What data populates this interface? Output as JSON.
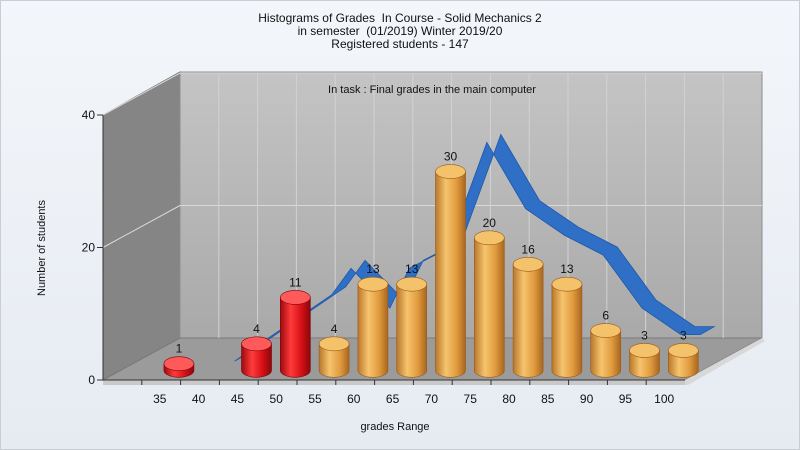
{
  "chart_data": {
    "type": "bar",
    "title_lines": [
      "Histograms of Grades  In Course - Solid Mechanics 2",
      "in semester  (01/2019) Winter 2019/20",
      "Registered students - 147"
    ],
    "annotation": "In task : Final grades in the main computer",
    "xlabel": "grades Range",
    "ylabel": "Number of students",
    "x_tick_labels": [
      "35",
      "40",
      "45",
      "50",
      "55",
      "60",
      "65",
      "70",
      "75",
      "80",
      "85",
      "90",
      "95",
      "100"
    ],
    "y_ticks": [
      0,
      20,
      40
    ],
    "ylim": [
      0,
      40
    ],
    "categories": [
      "35",
      "45",
      "50",
      "55",
      "60",
      "65",
      "70",
      "75",
      "80",
      "85",
      "90",
      "95",
      "100"
    ],
    "values": [
      1,
      4,
      11,
      4,
      13,
      13,
      30,
      20,
      16,
      13,
      6,
      3,
      3
    ],
    "bar_status": [
      "fail",
      "fail",
      "fail",
      "pass",
      "pass",
      "pass",
      "pass",
      "pass",
      "pass",
      "pass",
      "pass",
      "pass",
      "pass"
    ],
    "curve": {
      "type": "area",
      "x": [
        42.5,
        55,
        57.5,
        62.5,
        65,
        70,
        75,
        80,
        85,
        90,
        95,
        100,
        102.5
      ],
      "values": [
        0,
        10,
        14,
        8,
        14,
        17,
        33,
        23,
        19,
        16,
        8,
        4,
        4
      ]
    },
    "grid": true,
    "legend": "none",
    "colors": {
      "fail": "#e3141b",
      "pass": "#e7a84a",
      "curve": "#2f6fc5",
      "wall": "#b8b8b8",
      "left_wall": "#8a8a8a",
      "floor": "#9a9a9a"
    }
  }
}
